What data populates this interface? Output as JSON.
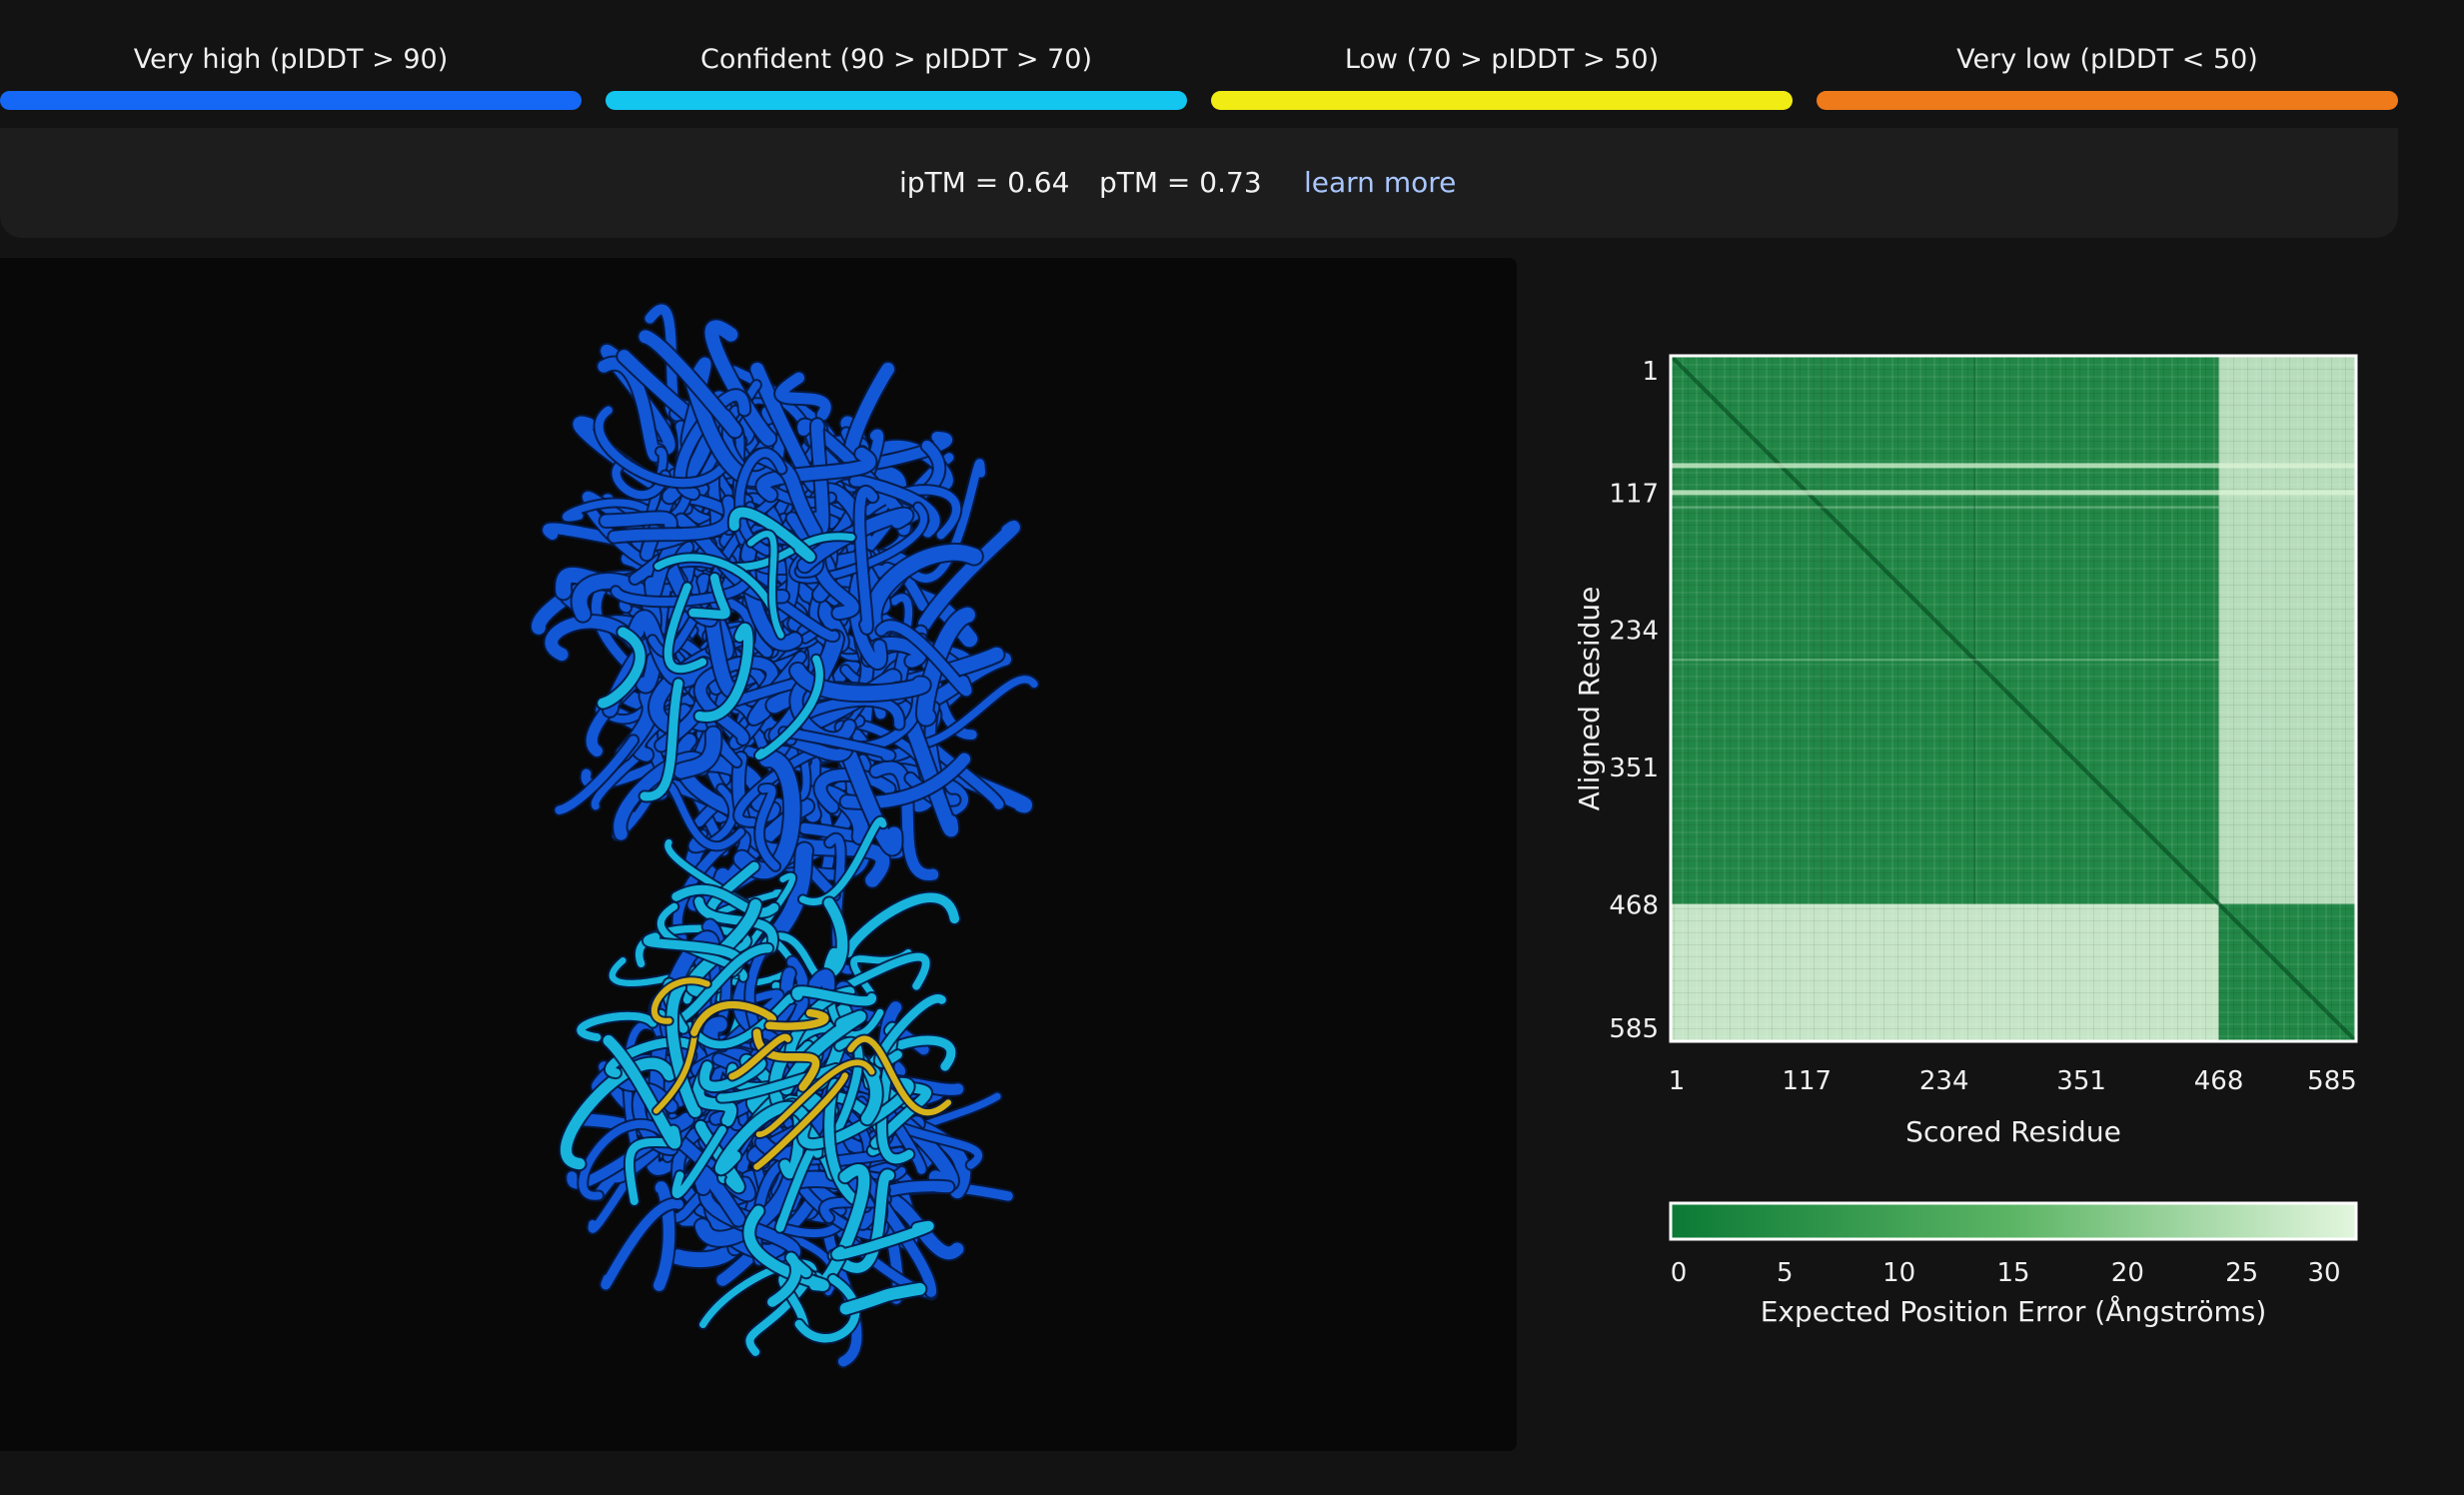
{
  "legend": [
    {
      "label": "Very high (pIDDT > 90)",
      "color": "#1468f5"
    },
    {
      "label": "Confident (90 > pIDDT > 70)",
      "color": "#12c6ef"
    },
    {
      "label": "Low (70 > pIDDT > 50)",
      "color": "#f0ec14"
    },
    {
      "label": "Very low (pIDDT < 50)",
      "color": "#ef7a1a"
    }
  ],
  "scores": {
    "iptm": "ipTM = 0.64",
    "ptm": "pTM = 0.73",
    "learn_more": "learn more"
  },
  "structure": {
    "icon": "protein-ribbon-icon",
    "colors": {
      "very_high": "#1257d6",
      "confident": "#18b4dc",
      "low": "#d6b21a"
    }
  },
  "chart_data": {
    "type": "heatmap",
    "xlabel": "Scored Residue",
    "ylabel": "Aligned Residue",
    "x_ticks": [
      "1",
      "117",
      "234",
      "351",
      "468",
      "585"
    ],
    "y_ticks": [
      "1",
      "117",
      "234",
      "351",
      "468",
      "585"
    ],
    "residue_range": [
      1,
      585
    ],
    "chain_boundary": 468,
    "blocks": [
      {
        "x": [
          1,
          468
        ],
        "y": [
          1,
          468
        ],
        "approx_error": 3
      },
      {
        "x": [
          468,
          585
        ],
        "y": [
          1,
          468
        ],
        "approx_error": 24
      },
      {
        "x": [
          1,
          468
        ],
        "y": [
          468,
          585
        ],
        "approx_error": 26
      },
      {
        "x": [
          468,
          585
        ],
        "y": [
          468,
          585
        ],
        "approx_error": 3
      }
    ],
    "colorbar": {
      "label": "Expected Position Error (Ångströms)",
      "ticks": [
        "0",
        "5",
        "10",
        "15",
        "20",
        "25",
        "30"
      ],
      "range": [
        0,
        30
      ],
      "color_low": "#0b7a35",
      "color_high": "#e3f6de"
    }
  }
}
